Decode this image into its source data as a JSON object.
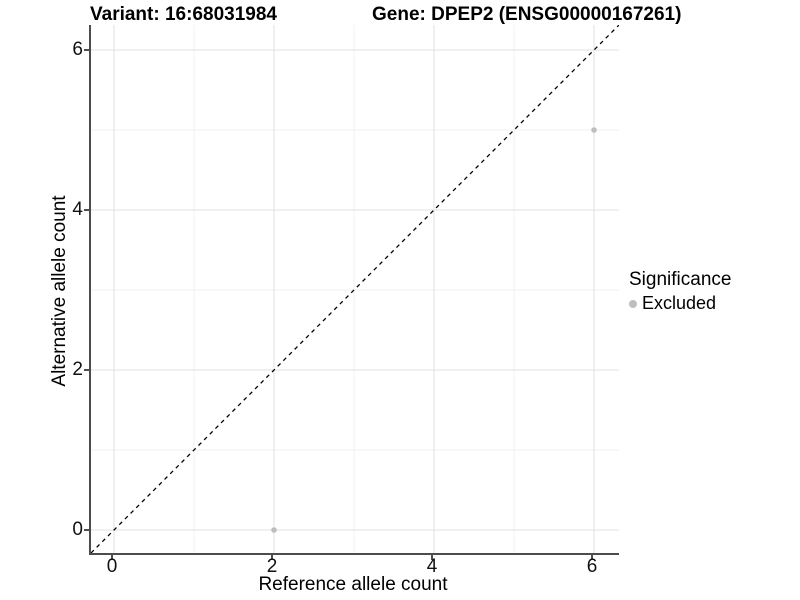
{
  "titles": {
    "variant": "Variant: 16:68031984",
    "gene": "Gene: DPEP2 (ENSG00000167261)"
  },
  "chart_data": {
    "type": "scatter",
    "title_left": "Variant: 16:68031984",
    "title_right": "Gene: DPEP2 (ENSG00000167261)",
    "xlabel": "Reference allele count",
    "ylabel": "Alternative allele count",
    "xlim": [
      -0.2875,
      6.3125
    ],
    "ylim": [
      -0.2875,
      6.3125
    ],
    "x_ticks": [
      0,
      2,
      4,
      6
    ],
    "y_ticks": [
      0,
      2,
      4,
      6
    ],
    "x_minor_ticks": [
      1,
      3,
      5
    ],
    "y_minor_ticks": [
      1,
      3,
      5
    ],
    "grid": true,
    "series": [
      {
        "name": "Excluded",
        "color": "#bebebe",
        "points": [
          {
            "x": 2,
            "y": 0
          },
          {
            "x": 6,
            "y": 5
          }
        ]
      }
    ],
    "reference_line": {
      "type": "identity",
      "label": "y = x",
      "style": "dashed",
      "color": "#000000"
    },
    "legend": {
      "title": "Significance",
      "position": "right",
      "entries": [
        {
          "label": "Excluded",
          "color": "#bebebe"
        }
      ]
    }
  },
  "colors": {
    "axis_line": "#4d4d4d",
    "major_grid": "#e2e2e2",
    "minor_grid": "#f0f0f0",
    "tick_text": "#111111",
    "point": "#bebebe"
  }
}
